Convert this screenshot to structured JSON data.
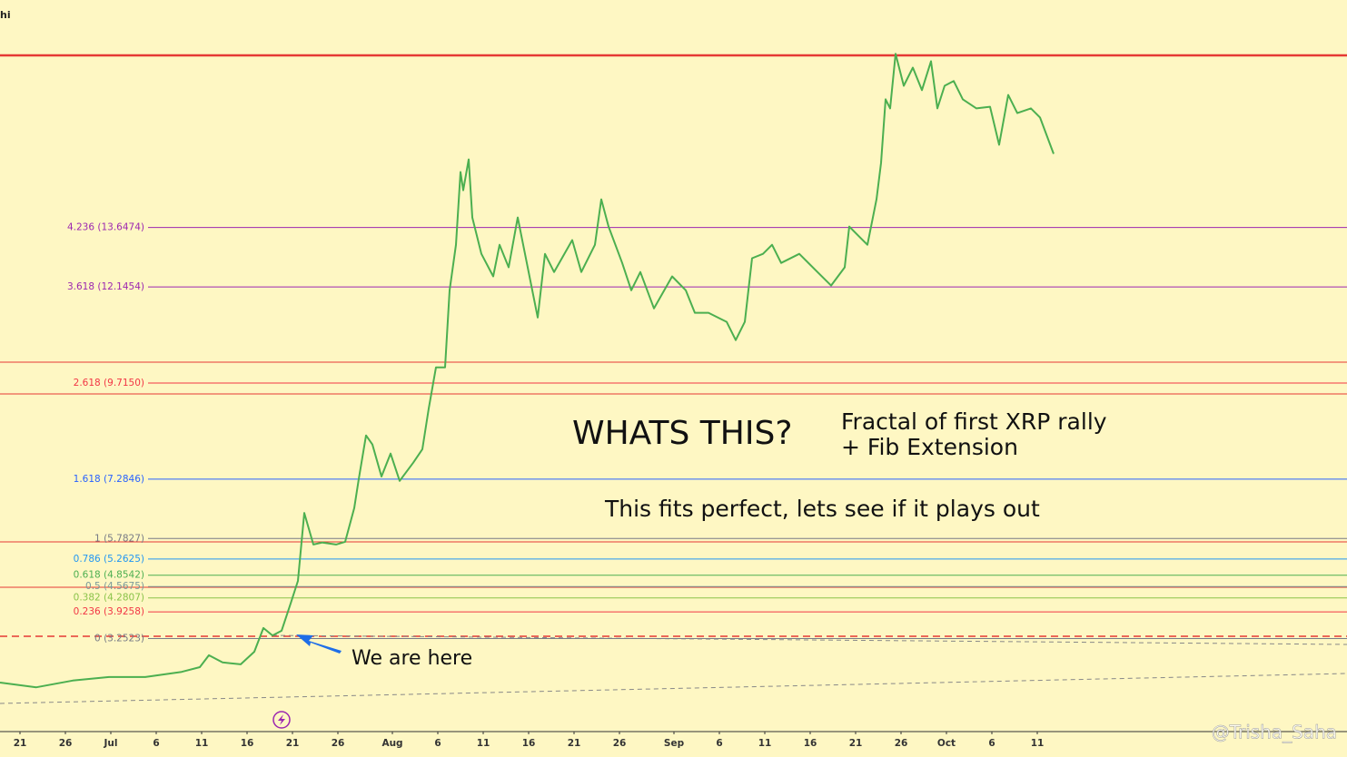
{
  "corner_text": "hi",
  "watermark": "@Trisha_Saha",
  "chart_data": {
    "type": "line",
    "annotations": {
      "headline": "WHATS THIS?",
      "note_1": "Fractal of first XRP rally",
      "note_2": "+ Fib Extension",
      "note_3": "This fits perfect, lets see if it plays out",
      "pointer": "We are here"
    },
    "xlim": [
      -2.2,
      146.1
    ],
    "ylim": [
      0.9,
      19.4
    ],
    "xticks": [
      {
        "value": 0,
        "label": "21"
      },
      {
        "value": 5,
        "label": "26"
      },
      {
        "value": 10,
        "label": "Jul"
      },
      {
        "value": 15,
        "label": "6"
      },
      {
        "value": 20,
        "label": "11"
      },
      {
        "value": 25,
        "label": "16"
      },
      {
        "value": 30,
        "label": "21"
      },
      {
        "value": 35,
        "label": "26"
      },
      {
        "value": 41,
        "label": "Aug"
      },
      {
        "value": 46,
        "label": "6"
      },
      {
        "value": 51,
        "label": "11"
      },
      {
        "value": 56,
        "label": "16"
      },
      {
        "value": 61,
        "label": "21"
      },
      {
        "value": 66,
        "label": "26"
      },
      {
        "value": 72,
        "label": "Sep"
      },
      {
        "value": 77,
        "label": "6"
      },
      {
        "value": 82,
        "label": "11"
      },
      {
        "value": 87,
        "label": "16"
      },
      {
        "value": 92,
        "label": "21"
      },
      {
        "value": 97,
        "label": "26"
      },
      {
        "value": 102,
        "label": "Oct"
      },
      {
        "value": 107,
        "label": "6"
      },
      {
        "value": 112,
        "label": "11"
      }
    ],
    "fib_levels": [
      {
        "label": "4.236 (13.6474)",
        "value": 13.6474,
        "color": "#9c27b0"
      },
      {
        "label": "3.618 (12.1454)",
        "value": 12.1454,
        "color": "#9c27b0"
      },
      {
        "label": "2.618 (9.7150)",
        "value": 9.715,
        "color": "#f23645"
      },
      {
        "label": "1.618 (7.2846)",
        "value": 7.2846,
        "color": "#2962ff"
      },
      {
        "label": "1 (5.7827)",
        "value": 5.7827,
        "color": "#787b86"
      },
      {
        "label": "0.786 (5.2625)",
        "value": 5.2625,
        "color": "#2196f3"
      },
      {
        "label": "0.618 (4.8542)",
        "value": 4.8542,
        "color": "#4caf50"
      },
      {
        "label": "0.5 (4.5675)",
        "value": 4.5675,
        "color": "#7a9a9a"
      },
      {
        "label": "0.382 (4.2807)",
        "value": 4.2807,
        "color": "#8bc34a"
      },
      {
        "label": "0.236 (3.9258)",
        "value": 3.9258,
        "color": "#f23645"
      },
      {
        "label": "0 (3.2523)",
        "value": 3.2523,
        "color": "#787b86"
      }
    ],
    "series": [
      {
        "color": "#4caf50",
        "x": [
          -2.2,
          1.8,
          5.8,
          9.8,
          13.8,
          17.8,
          19.8,
          20.8,
          22.3,
          24.3,
          25.8,
          26.8,
          27.8,
          28.8,
          29.8,
          30.6,
          31.3,
          32.3,
          33.3,
          34.8,
          35.8,
          36.8,
          37.3,
          38.1,
          38.8,
          39.8,
          40.8,
          41.8,
          43.3,
          44.3,
          45,
          45.8,
          46.8,
          47.3,
          48,
          48.5,
          48.8,
          49.4,
          49.8,
          50.8,
          52.1,
          52.8,
          53.8,
          54.8,
          55.8,
          57,
          57.8,
          58.8,
          60.8,
          61.8,
          63.3,
          64,
          64.8,
          66.3,
          67.3,
          68.3,
          69.8,
          71.8,
          73.3,
          74.3,
          75.8,
          77.8,
          78.8,
          79.8,
          80.6,
          81.8,
          82.8,
          83.8,
          85.8,
          87.8,
          89.3,
          90.8,
          91.3,
          92.3,
          93.3,
          94.3,
          94.8,
          95.3,
          95.8,
          96.4,
          97.3,
          98.3,
          99.3,
          100.3,
          101,
          101.8,
          102.8,
          103.8,
          105.3,
          106.8,
          107.8,
          108.8,
          109.8,
          111.3,
          112.3,
          113.8
        ],
        "values": [
          2.14,
          2.02,
          2.19,
          2.28,
          2.28,
          2.41,
          2.53,
          2.83,
          2.65,
          2.6,
          2.92,
          3.52,
          3.33,
          3.45,
          4.14,
          4.71,
          6.43,
          5.63,
          5.68,
          5.63,
          5.7,
          6.55,
          7.29,
          8.39,
          8.16,
          7.35,
          7.93,
          7.24,
          7.7,
          8.04,
          9.07,
          10.11,
          10.11,
          12.06,
          13.21,
          15.05,
          14.59,
          15.37,
          13.9,
          12.98,
          12.41,
          13.21,
          12.64,
          13.9,
          12.75,
          11.37,
          12.98,
          12.52,
          13.33,
          12.52,
          13.21,
          14.36,
          13.67,
          12.75,
          12.06,
          12.52,
          11.6,
          12.41,
          12.06,
          11.49,
          11.49,
          11.26,
          10.8,
          11.26,
          12.87,
          12.98,
          13.21,
          12.75,
          12.98,
          12.52,
          12.18,
          12.64,
          13.67,
          13.44,
          13.21,
          14.36,
          15.28,
          16.89,
          16.66,
          18.04,
          17.23,
          17.69,
          17.12,
          17.85,
          16.66,
          17.23,
          17.35,
          16.89,
          16.66,
          16.7,
          15.74,
          17.0,
          16.54,
          16.66,
          16.43,
          15.51
        ]
      }
    ]
  }
}
